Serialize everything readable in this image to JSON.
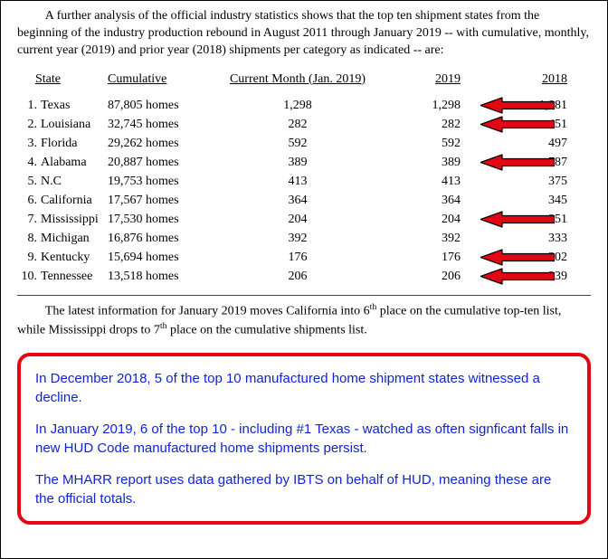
{
  "intro": "A further analysis of the official industry statistics shows that the top ten shipment states from the beginning of the industry production rebound in August 2011 through January 2019  -- with cumulative, monthly, current year (2019) and prior year (2018) shipments per category as indicated -- are:",
  "headers": {
    "state": "State",
    "cumulative": "Cumulative",
    "current": "Current Month (Jan. 2019)",
    "y2019": "2019",
    "y2018": "2018"
  },
  "rows": [
    {
      "n": "1.",
      "state": "Texas",
      "cum": "87,805 homes",
      "cur": "1,298",
      "y19": "1,298",
      "y18": "1,881",
      "arrow": true
    },
    {
      "n": "2.",
      "state": "Louisiana",
      "cum": "32,745 homes",
      "cur": "282",
      "y19": "282",
      "y18": "451",
      "arrow": true
    },
    {
      "n": "3.",
      "state": "Florida",
      "cum": "29,262 homes",
      "cur": "592",
      "y19": "592",
      "y18": "497",
      "arrow": false
    },
    {
      "n": "4.",
      "state": "Alabama",
      "cum": "20,887 homes",
      "cur": "389",
      "y19": "389",
      "y18": "787",
      "arrow": true
    },
    {
      "n": "5.",
      "state": "N.C",
      "cum": "19,753 homes",
      "cur": "413",
      "y19": "413",
      "y18": "375",
      "arrow": false
    },
    {
      "n": "6.",
      "state": "California",
      "cum": "17,567 homes",
      "cur": "364",
      "y19": "364",
      "y18": "345",
      "arrow": false
    },
    {
      "n": "7.",
      "state": "Mississippi",
      "cum": "17,530 homes",
      "cur": "204",
      "y19": "204",
      "y18": "351",
      "arrow": true
    },
    {
      "n": "8.",
      "state": "Michigan",
      "cum": "16,876 homes",
      "cur": "392",
      "y19": "392",
      "y18": "333",
      "arrow": false
    },
    {
      "n": "9.",
      "state": "Kentucky",
      "cum": "15,694 homes",
      "cur": "176",
      "y19": "176",
      "y18": "302",
      "arrow": true
    },
    {
      "n": "10.",
      "state": "Tennessee",
      "cum": "13,518 homes",
      "cur": "206",
      "y19": "206",
      "y18": "239",
      "arrow": true
    }
  ],
  "arrow_style": {
    "fill": "#e30613",
    "stroke": "#000000",
    "stroke_width": 1.2,
    "width": 82,
    "height": 19
  },
  "caption_pre": "The latest information for January 2019 moves California into 6",
  "caption_mid": " place on the cumulative top-ten list, while Mississippi drops to 7",
  "caption_post": " place on the cumulative shipments list.",
  "callout": {
    "p1": "In December 2018, 5 of the top 10 manufactured home shipment states witnessed a decline.",
    "p2": "In January 2019, 6 of the top 10 - including #1 Texas - watched as often signficant falls in new HUD Code manufactured home shipments persist.",
    "p3": "The MHARR report uses data gathered by IBTS on behalf of HUD, meaning these are the official totals."
  }
}
